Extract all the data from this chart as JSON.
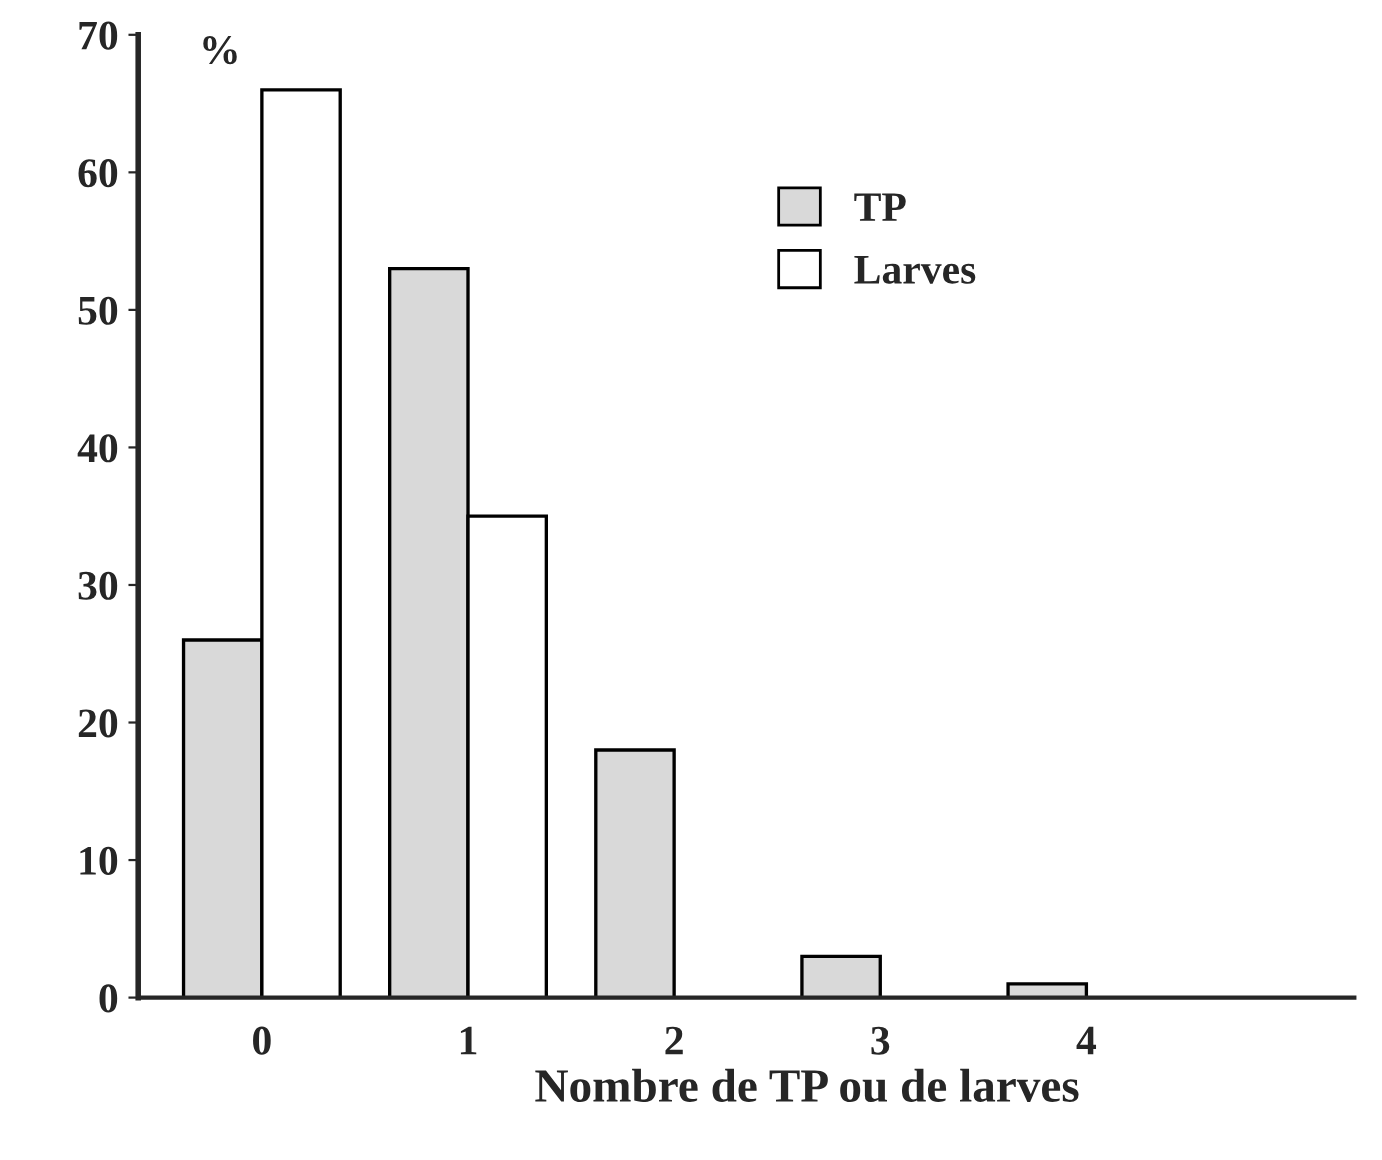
{
  "chart_data": {
    "type": "bar",
    "xlabel": "Nombre de TP ou de larves",
    "ylabel": "%",
    "categories": [
      "0",
      "1",
      "2",
      "3",
      "4"
    ],
    "series": [
      {
        "name": "TP",
        "color": "#d9d9d9",
        "values": [
          26,
          53,
          18,
          3,
          1
        ]
      },
      {
        "name": "Larves",
        "color": "#ffffff",
        "values": [
          66,
          35,
          null,
          null,
          null
        ]
      }
    ],
    "ylim": [
      0,
      70
    ],
    "yticks": [
      0,
      10,
      20,
      30,
      40,
      50,
      60,
      70
    ],
    "grid": false,
    "legend": "top right"
  }
}
